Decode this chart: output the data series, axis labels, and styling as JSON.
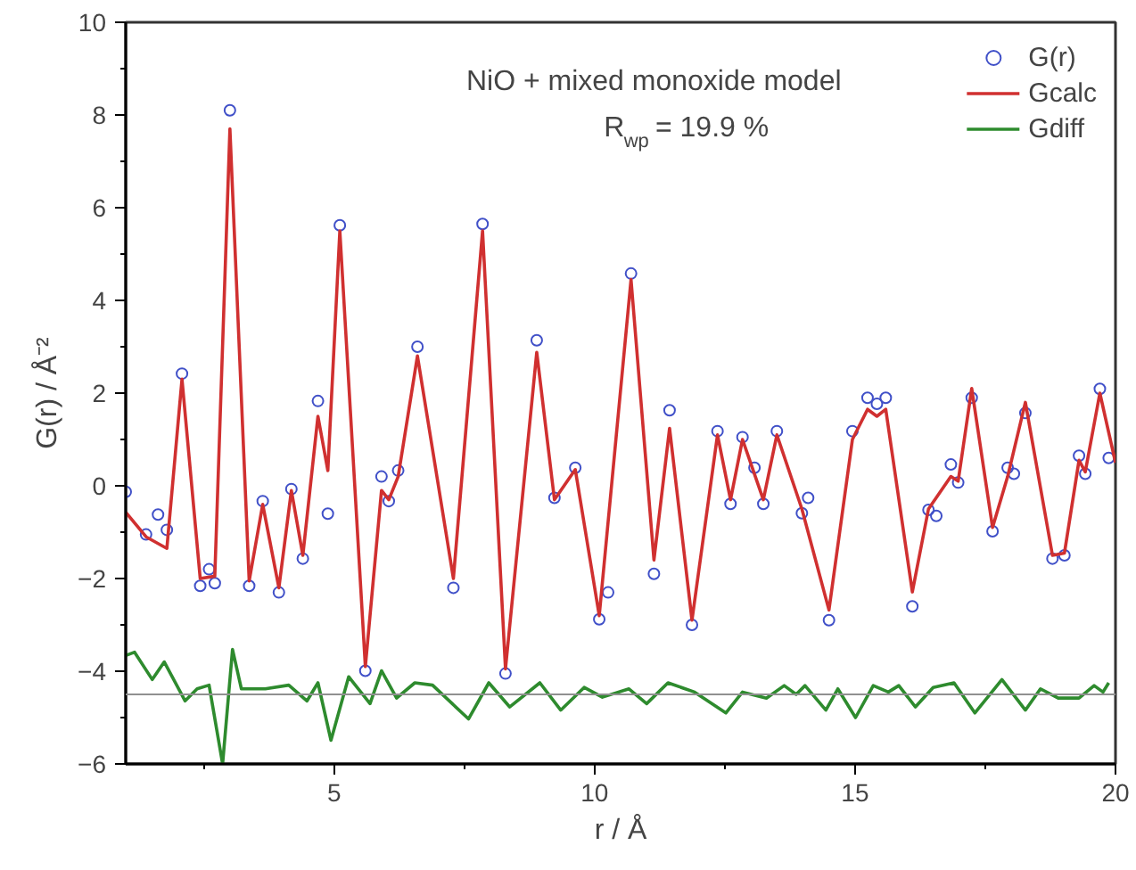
{
  "chart_data": {
    "type": "line",
    "xlabel": "r / Å",
    "ylabel": "G(r) / Å⁻²",
    "annotations": [
      "NiO + mixed monoxide model",
      "R$_{wp}$ = 19.9 %"
    ],
    "xlim": [
      1,
      20
    ],
    "xticks": [
      {
        "value": 2.5,
        "label": null
      },
      5,
      {
        "value": 7.5,
        "label": null
      },
      10,
      {
        "value": 12.5,
        "label": null
      },
      15,
      {
        "value": 17.5,
        "label": null
      },
      20
    ],
    "ylim": [
      -6,
      10
    ],
    "yticks": [
      -6,
      {
        "value": -5,
        "label": null
      },
      -4,
      {
        "value": -3,
        "label": null
      },
      -2,
      {
        "value": -1,
        "label": null
      },
      0,
      {
        "value": 1,
        "label": null
      },
      2,
      {
        "value": 3,
        "label": null
      },
      4,
      {
        "value": 5,
        "label": null
      },
      6,
      {
        "value": 7,
        "label": null
      },
      8,
      {
        "value": 9,
        "label": null
      },
      10
    ],
    "grid": false,
    "legend": "top right",
    "ref_lines": [
      {
        "axis": "y",
        "value": -4.5,
        "label": null,
        "color": "#909090"
      }
    ],
    "series": [
      {
        "name": "G(r)",
        "type": "scatter",
        "marker": "circle",
        "color": "#4050c8",
        "x": [
          1.0,
          1.39,
          1.62,
          1.79,
          2.08,
          2.43,
          2.6,
          2.71,
          3.0,
          3.37,
          3.63,
          3.94,
          4.18,
          4.4,
          4.69,
          4.88,
          5.11,
          5.6,
          5.91,
          6.05,
          6.23,
          6.6,
          7.29,
          7.85,
          8.29,
          8.89,
          9.23,
          9.63,
          10.09,
          10.26,
          10.7,
          11.14,
          11.44,
          11.87,
          12.36,
          12.61,
          12.84,
          13.07,
          13.24,
          13.5,
          13.98,
          14.1,
          14.5,
          14.95,
          15.24,
          15.42,
          15.59,
          16.1,
          16.41,
          16.56,
          16.84,
          16.98,
          17.24,
          17.64,
          17.93,
          18.05,
          18.27,
          18.79,
          19.02,
          19.3,
          19.42,
          19.7,
          19.87
        ],
        "values": [
          -0.13,
          -1.05,
          -0.62,
          -0.95,
          2.42,
          -2.16,
          -1.8,
          -2.1,
          8.1,
          -2.16,
          -0.33,
          -2.3,
          -0.07,
          -1.57,
          1.83,
          -0.6,
          5.62,
          -3.99,
          0.2,
          -0.33,
          0.33,
          3.0,
          -2.2,
          5.65,
          -4.05,
          3.14,
          -0.26,
          0.39,
          -2.88,
          -2.3,
          4.58,
          -1.9,
          1.63,
          -3.0,
          1.18,
          -0.39,
          1.05,
          0.39,
          -0.39,
          1.18,
          -0.59,
          -0.26,
          -2.9,
          1.18,
          1.9,
          1.77,
          1.9,
          -2.6,
          -0.52,
          -0.65,
          0.46,
          0.07,
          1.9,
          -0.98,
          0.39,
          0.26,
          1.57,
          -1.57,
          -1.5,
          0.65,
          0.26,
          2.09,
          0.6
        ]
      },
      {
        "name": "Gcalc",
        "line_style": "solid",
        "color": "#d03030",
        "x": [
          1.0,
          1.39,
          1.79,
          2.08,
          2.43,
          2.71,
          3.0,
          3.37,
          3.63,
          3.94,
          4.18,
          4.4,
          4.69,
          4.88,
          5.11,
          5.6,
          5.91,
          6.05,
          6.23,
          6.6,
          7.29,
          7.85,
          8.29,
          8.89,
          9.23,
          9.63,
          10.09,
          10.7,
          11.14,
          11.44,
          11.87,
          12.36,
          12.61,
          12.84,
          13.24,
          13.5,
          13.98,
          14.5,
          14.95,
          15.24,
          15.42,
          15.59,
          16.1,
          16.41,
          16.84,
          16.98,
          17.24,
          17.64,
          17.93,
          18.27,
          18.79,
          19.02,
          19.3,
          19.42,
          19.7,
          20.0
        ],
        "values": [
          -0.57,
          -1.1,
          -1.35,
          2.3,
          -2.0,
          -1.95,
          7.7,
          -2.05,
          -0.4,
          -2.2,
          -0.1,
          -1.5,
          1.5,
          0.33,
          5.5,
          -3.9,
          -0.1,
          -0.3,
          0.2,
          2.8,
          -2.0,
          5.5,
          -3.95,
          2.88,
          -0.3,
          0.35,
          -2.8,
          4.45,
          -1.6,
          1.24,
          -2.9,
          1.1,
          -0.3,
          1.0,
          -0.3,
          1.1,
          -0.5,
          -2.68,
          1.0,
          1.65,
          1.5,
          1.65,
          -2.29,
          -0.5,
          0.2,
          0.1,
          2.1,
          -0.9,
          0.2,
          1.8,
          -1.5,
          -1.45,
          0.55,
          0.3,
          2.0,
          0.5
        ]
      },
      {
        "name": "Gdiff",
        "line_style": "solid",
        "color": "#2e8b2e",
        "x": [
          1.0,
          1.17,
          1.51,
          1.74,
          2.14,
          2.37,
          2.6,
          2.86,
          3.05,
          3.22,
          3.68,
          4.13,
          4.48,
          4.69,
          4.94,
          5.28,
          5.69,
          5.91,
          6.2,
          6.55,
          6.89,
          7.58,
          7.97,
          8.37,
          8.95,
          9.35,
          9.8,
          10.15,
          10.66,
          11.0,
          11.41,
          11.92,
          12.52,
          12.84,
          13.3,
          13.64,
          13.87,
          14.04,
          14.44,
          14.67,
          15.01,
          15.35,
          15.64,
          15.84,
          16.16,
          16.5,
          16.9,
          17.3,
          17.82,
          18.27,
          18.56,
          18.9,
          19.3,
          19.59,
          19.76,
          19.87
        ],
        "values": [
          -3.66,
          -3.59,
          -4.18,
          -3.8,
          -4.64,
          -4.38,
          -4.3,
          -6.0,
          -3.53,
          -4.38,
          -4.38,
          -4.3,
          -4.64,
          -4.25,
          -5.49,
          -4.12,
          -4.7,
          -3.99,
          -4.58,
          -4.25,
          -4.3,
          -5.03,
          -4.25,
          -4.77,
          -4.25,
          -4.84,
          -4.35,
          -4.56,
          -4.38,
          -4.7,
          -4.25,
          -4.45,
          -4.9,
          -4.45,
          -4.58,
          -4.31,
          -4.5,
          -4.31,
          -4.84,
          -4.38,
          -5.0,
          -4.31,
          -4.45,
          -4.31,
          -4.77,
          -4.35,
          -4.25,
          -4.9,
          -4.18,
          -4.84,
          -4.38,
          -4.58,
          -4.58,
          -4.31,
          -4.45,
          -4.25
        ]
      }
    ]
  }
}
